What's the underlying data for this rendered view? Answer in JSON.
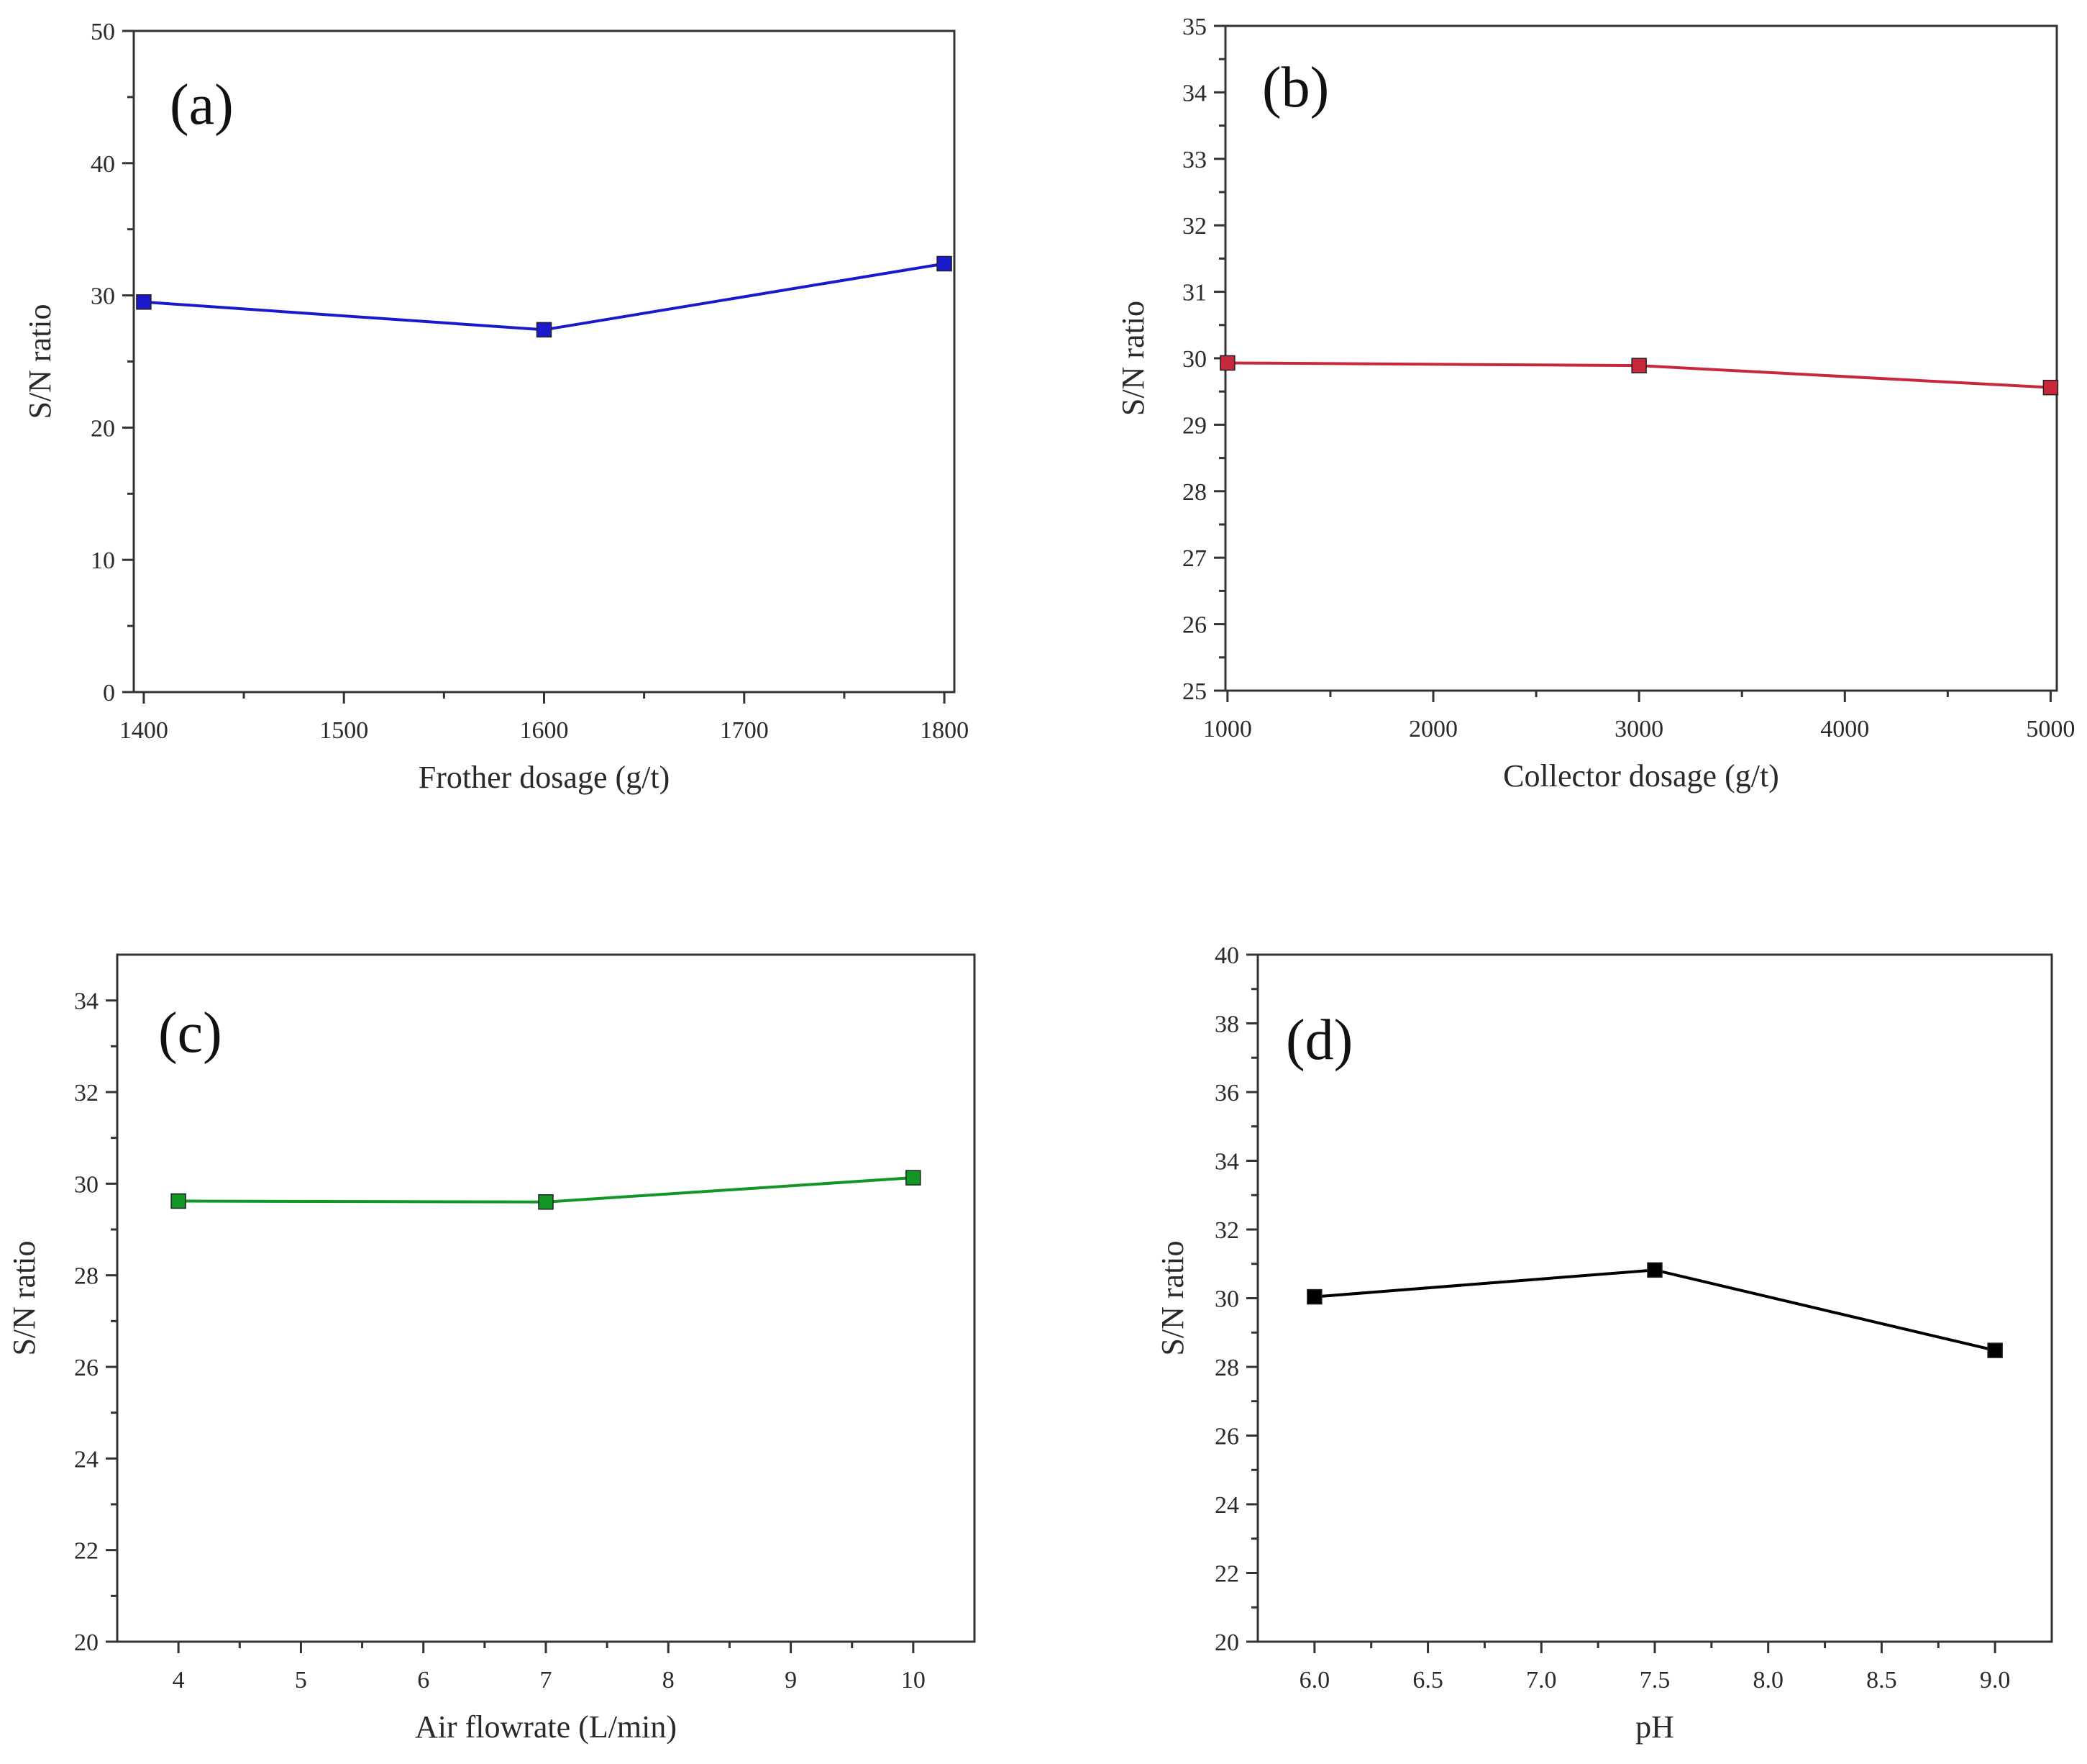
{
  "chart_data": [
    {
      "type": "line",
      "panel_label": "(a)",
      "xlabel": "Frother dosage (g/t)",
      "ylabel": "S/N ratio",
      "xlim": [
        1395,
        1805
      ],
      "ylim": [
        0,
        50
      ],
      "xticks": [
        1400,
        1500,
        1600,
        1700,
        1800
      ],
      "xtick_labels": [
        "1400",
        "1500",
        "1600",
        "1700",
        "1800"
      ],
      "yticks": [
        0,
        10,
        20,
        30,
        40,
        50
      ],
      "ytick_labels": [
        "0",
        "10",
        "20",
        "30",
        "40",
        "50"
      ],
      "color": "#1a1acc",
      "marker": "square",
      "x": [
        1400,
        1600,
        1800
      ],
      "y": [
        29.5,
        27.4,
        32.4
      ]
    },
    {
      "type": "line",
      "panel_label": "(b)",
      "xlabel": "Collector dosage (g/t)",
      "ylabel": "S/N ratio",
      "xlim": [
        990,
        5030
      ],
      "ylim": [
        25,
        35
      ],
      "xticks": [
        1000,
        2000,
        3000,
        4000,
        5000
      ],
      "xtick_labels": [
        "1000",
        "2000",
        "3000",
        "4000",
        "5000"
      ],
      "yticks": [
        25,
        26,
        27,
        28,
        29,
        30,
        31,
        32,
        33,
        34,
        35
      ],
      "ytick_labels": [
        "25",
        "26",
        "27",
        "28",
        "29",
        "30",
        "31",
        "32",
        "33",
        "34",
        "35"
      ],
      "color": "#c8283c",
      "marker": "square",
      "x": [
        1000,
        3000,
        5000
      ],
      "y": [
        29.93,
        29.89,
        29.56
      ]
    },
    {
      "type": "line",
      "panel_label": "(c)",
      "xlabel": "Air flowrate (L/min)",
      "ylabel": "S/N ratio",
      "xlim": [
        3.5,
        10.5
      ],
      "ylim": [
        20,
        35
      ],
      "xticks": [
        4,
        5,
        6,
        7,
        8,
        9,
        10
      ],
      "xtick_labels": [
        "4",
        "5",
        "6",
        "7",
        "8",
        "9",
        "10"
      ],
      "yticks": [
        20,
        22,
        24,
        26,
        28,
        30,
        32,
        34
      ],
      "ytick_labels": [
        "20",
        "22",
        "24",
        "26",
        "28",
        "30",
        "32",
        "34"
      ],
      "color": "#129626",
      "marker": "square",
      "x": [
        4,
        7,
        10
      ],
      "y": [
        29.62,
        29.6,
        30.13
      ]
    },
    {
      "type": "line",
      "panel_label": "(d)",
      "xlabel": "pH",
      "ylabel": "S/N ratio",
      "xlim": [
        5.75,
        9.25
      ],
      "ylim": [
        20,
        40
      ],
      "xticks": [
        6.0,
        6.5,
        7.0,
        7.5,
        8.0,
        8.5,
        9.0
      ],
      "xtick_labels": [
        "6.0",
        "6.5",
        "7.0",
        "7.5",
        "8.0",
        "8.5",
        "9.0"
      ],
      "yticks": [
        20,
        22,
        24,
        26,
        28,
        30,
        32,
        34,
        36,
        38,
        40
      ],
      "ytick_labels": [
        "20",
        "22",
        "24",
        "26",
        "28",
        "30",
        "32",
        "34",
        "36",
        "38",
        "40"
      ],
      "color": "#000000",
      "marker": "square",
      "x": [
        6.0,
        7.5,
        9.0
      ],
      "y": [
        30.04,
        30.82,
        28.48
      ]
    }
  ]
}
